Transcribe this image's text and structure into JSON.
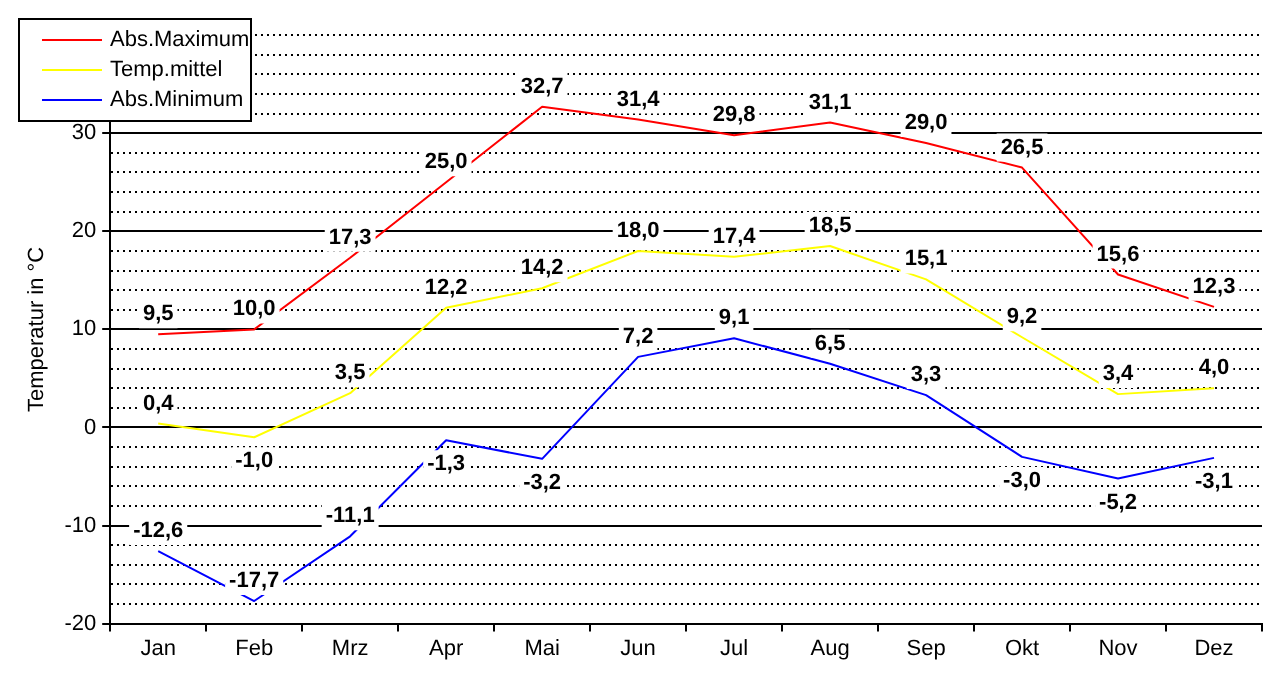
{
  "chart_data": {
    "type": "line",
    "ylabel": "Temperatur in °C",
    "categories": [
      "Jan",
      "Feb",
      "Mrz",
      "Apr",
      "Mai",
      "Jun",
      "Jul",
      "Aug",
      "Sep",
      "Okt",
      "Nov",
      "Dez"
    ],
    "series": [
      {
        "name": "Abs.Maximum",
        "color": "#ff0000",
        "values": [
          9.5,
          10.0,
          17.3,
          25.0,
          32.7,
          31.4,
          29.8,
          31.1,
          29.0,
          26.5,
          15.6,
          12.3
        ],
        "value_labels": [
          "9,5",
          "10,0",
          "17,3",
          "25,0",
          "32,7",
          "31,4",
          "29,8",
          "31,1",
          "29,0",
          "26,5",
          "15,6",
          "12,3"
        ]
      },
      {
        "name": "Temp.mittel",
        "color": "#ffff00",
        "values": [
          0.4,
          -1.0,
          3.5,
          12.2,
          14.2,
          18.0,
          17.4,
          18.5,
          15.1,
          9.2,
          3.4,
          4.0
        ],
        "value_labels": [
          "0,4",
          "-1,0",
          "3,5",
          "12,2",
          "14,2",
          "18,0",
          "17,4",
          "18,5",
          "15,1",
          "9,2",
          "3,4",
          "4,0"
        ]
      },
      {
        "name": "Abs.Minimum",
        "color": "#0000ff",
        "values": [
          -12.6,
          -17.7,
          -11.1,
          -1.3,
          -3.2,
          7.2,
          9.1,
          6.5,
          3.3,
          -3.0,
          -5.2,
          -3.1
        ],
        "value_labels": [
          "-12,6",
          "-17,7",
          "-11,1",
          "-1,3",
          "-3,2",
          "7,2",
          "9,1",
          "6,5",
          "3,3",
          "-3,0",
          "-5,2",
          "-3,1"
        ]
      }
    ],
    "ylim": [
      -20,
      40
    ],
    "yticks": [
      -20,
      {
        "value": -18,
        "label": null
      },
      {
        "value": -16,
        "label": null
      },
      {
        "value": -14,
        "label": null
      },
      {
        "value": -12,
        "label": null
      },
      -10,
      {
        "value": -8,
        "label": null
      },
      {
        "value": -6,
        "label": null
      },
      {
        "value": -4,
        "label": null
      },
      {
        "value": -2,
        "label": null
      },
      0,
      {
        "value": 2,
        "label": null
      },
      {
        "value": 4,
        "label": null
      },
      {
        "value": 6,
        "label": null
      },
      {
        "value": 8,
        "label": null
      },
      10,
      {
        "value": 12,
        "label": null
      },
      {
        "value": 14,
        "label": null
      },
      {
        "value": 16,
        "label": null
      },
      {
        "value": 18,
        "label": null
      },
      20,
      {
        "value": 22,
        "label": null
      },
      {
        "value": 24,
        "label": null
      },
      {
        "value": 26,
        "label": null
      },
      {
        "value": 28,
        "label": null
      },
      30,
      {
        "value": 32,
        "label": null
      },
      {
        "value": 34,
        "label": null
      },
      {
        "value": 36,
        "label": null
      },
      {
        "value": 38,
        "label": null
      },
      {
        "value": 40,
        "label": null
      }
    ],
    "grid": "y",
    "legend": "top left",
    "marker": "none",
    "line_style": "solid"
  }
}
